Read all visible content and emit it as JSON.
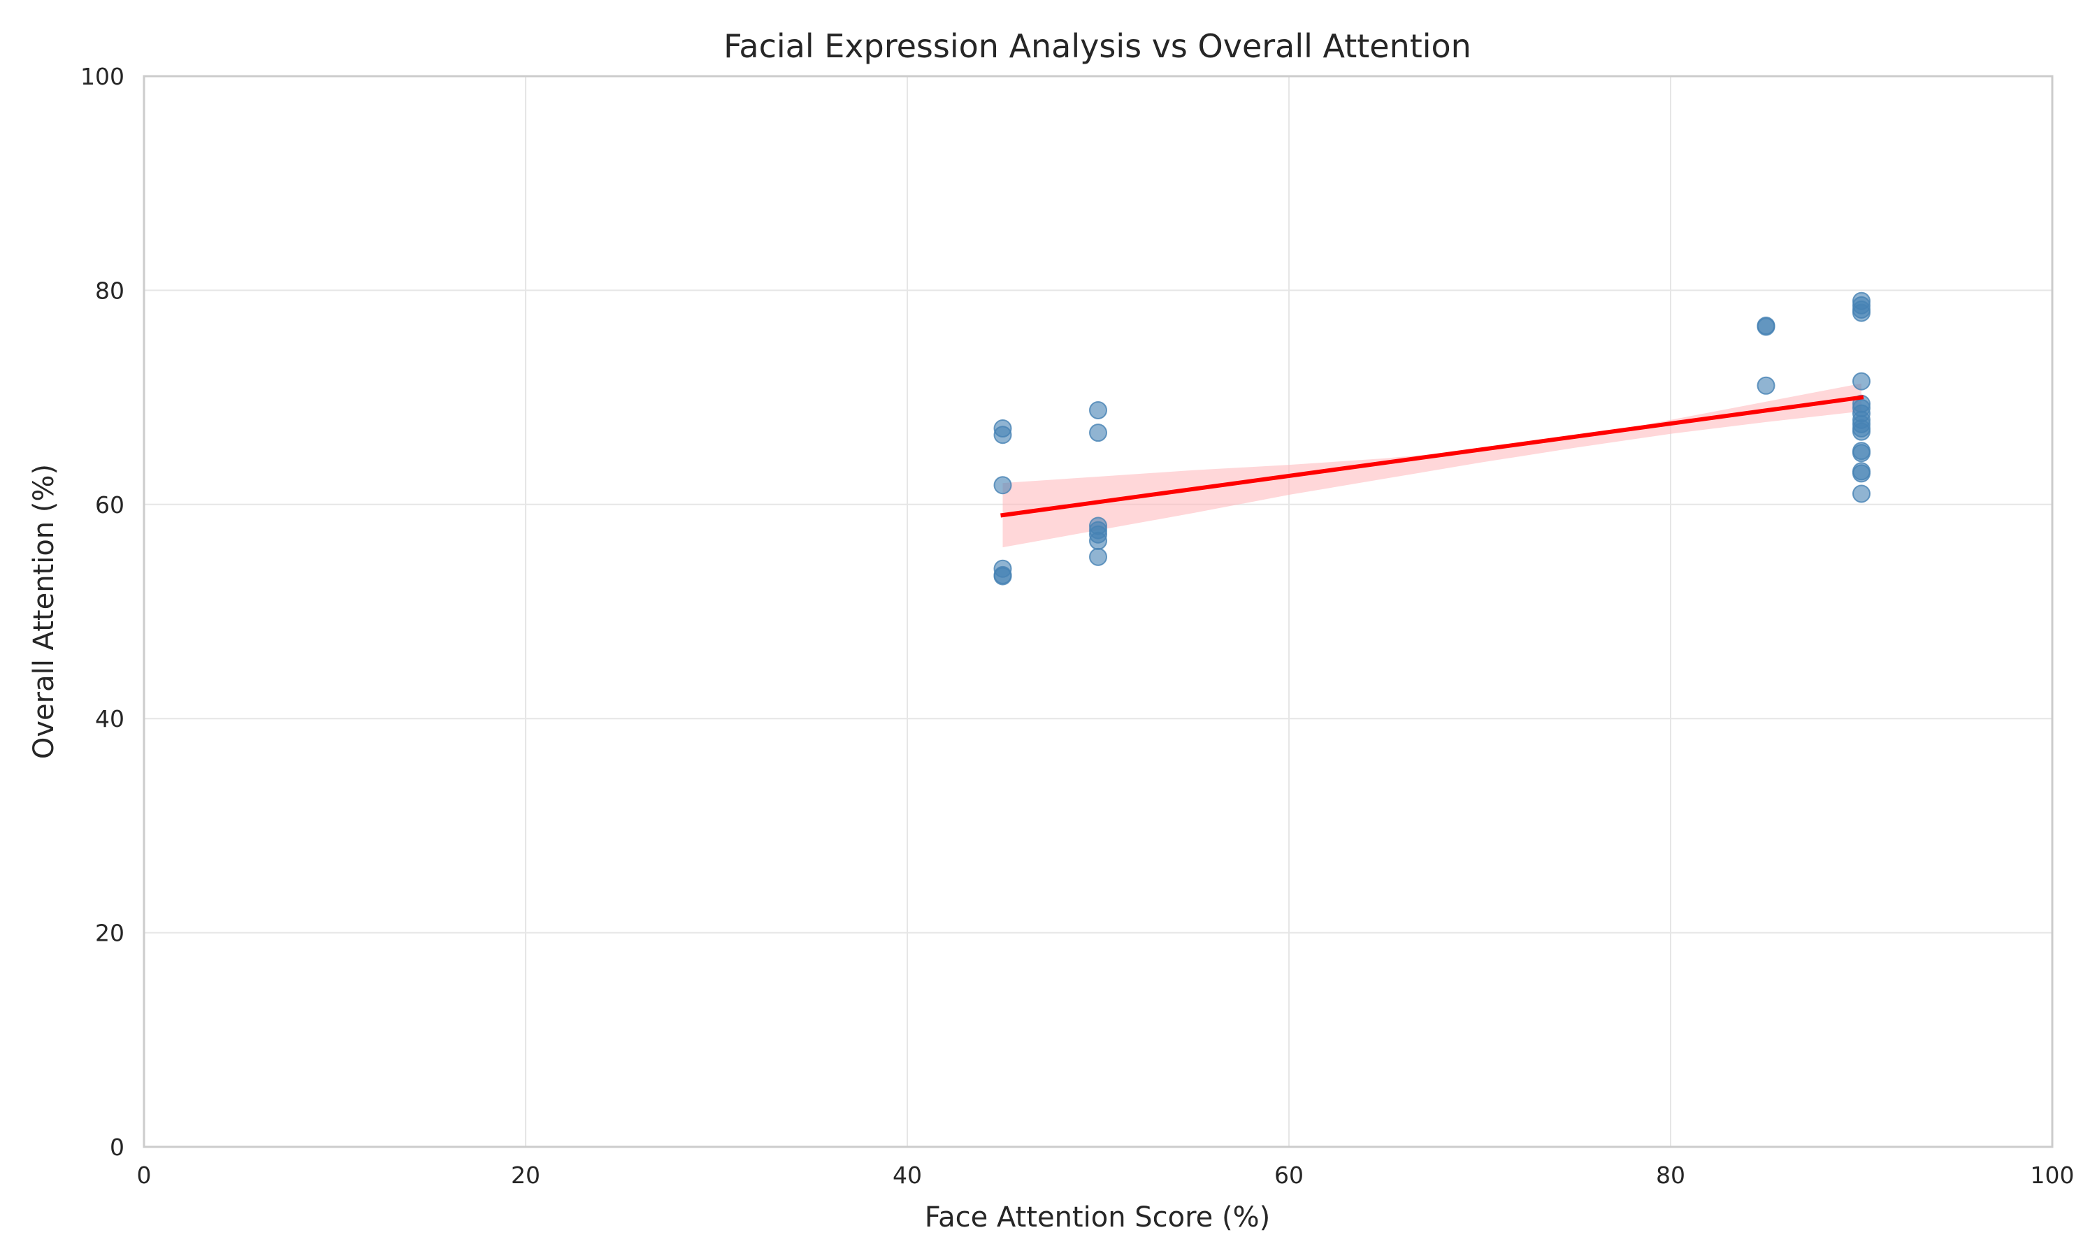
{
  "chart_data": {
    "type": "scatter",
    "title": "Facial Expression Analysis vs Overall Attention",
    "xlabel": "Face Attention Score (%)",
    "ylabel": "Overall Attention (%)",
    "xlim": [
      0,
      100
    ],
    "ylim": [
      0,
      100
    ],
    "xticks": [
      0,
      20,
      40,
      60,
      80,
      100
    ],
    "yticks": [
      0,
      20,
      40,
      60,
      80,
      100
    ],
    "xtick_labels": [
      "0",
      "20",
      "40",
      "60",
      "80",
      "100"
    ],
    "ytick_labels": [
      "0",
      "20",
      "40",
      "60",
      "80",
      "100"
    ],
    "grid": true,
    "legend": "none",
    "colors": {
      "points": "#4682B4",
      "regression_line": "#FF0000",
      "confidence_band": "#FFB6B9",
      "grid": "#E6E6E6",
      "frame": "#CCCCCC"
    },
    "points": [
      {
        "x": 45,
        "y": 67.1
      },
      {
        "x": 45,
        "y": 66.5
      },
      {
        "x": 45,
        "y": 61.8
      },
      {
        "x": 45,
        "y": 54.0
      },
      {
        "x": 45,
        "y": 53.4
      },
      {
        "x": 45,
        "y": 53.3
      },
      {
        "x": 50,
        "y": 68.8
      },
      {
        "x": 50,
        "y": 66.7
      },
      {
        "x": 50,
        "y": 58.0
      },
      {
        "x": 50,
        "y": 57.6
      },
      {
        "x": 50,
        "y": 57.2
      },
      {
        "x": 50,
        "y": 56.6
      },
      {
        "x": 50,
        "y": 55.1
      },
      {
        "x": 85,
        "y": 76.7
      },
      {
        "x": 85,
        "y": 76.6
      },
      {
        "x": 85,
        "y": 71.1
      },
      {
        "x": 90,
        "y": 79.0
      },
      {
        "x": 90,
        "y": 78.6
      },
      {
        "x": 90,
        "y": 78.2
      },
      {
        "x": 90,
        "y": 77.9
      },
      {
        "x": 90,
        "y": 71.5
      },
      {
        "x": 90,
        "y": 69.4
      },
      {
        "x": 90,
        "y": 69.0
      },
      {
        "x": 90,
        "y": 68.5
      },
      {
        "x": 90,
        "y": 67.9
      },
      {
        "x": 90,
        "y": 67.5
      },
      {
        "x": 90,
        "y": 67.1
      },
      {
        "x": 90,
        "y": 66.8
      },
      {
        "x": 90,
        "y": 65.0
      },
      {
        "x": 90,
        "y": 64.8
      },
      {
        "x": 90,
        "y": 63.1
      },
      {
        "x": 90,
        "y": 62.9
      },
      {
        "x": 90,
        "y": 61.0
      }
    ],
    "regression": {
      "x": [
        45,
        90
      ],
      "y": [
        59.0,
        70.0
      ]
    },
    "confidence_band": {
      "x": [
        45,
        50,
        55,
        60,
        65,
        70,
        75,
        80,
        85,
        90
      ],
      "lower": [
        56.0,
        57.6,
        59.2,
        60.9,
        62.4,
        63.9,
        65.3,
        66.6,
        67.7,
        68.7
      ],
      "upper": [
        62.0,
        62.6,
        63.2,
        63.7,
        64.3,
        65.1,
        66.2,
        67.9,
        69.6,
        71.3
      ]
    }
  }
}
